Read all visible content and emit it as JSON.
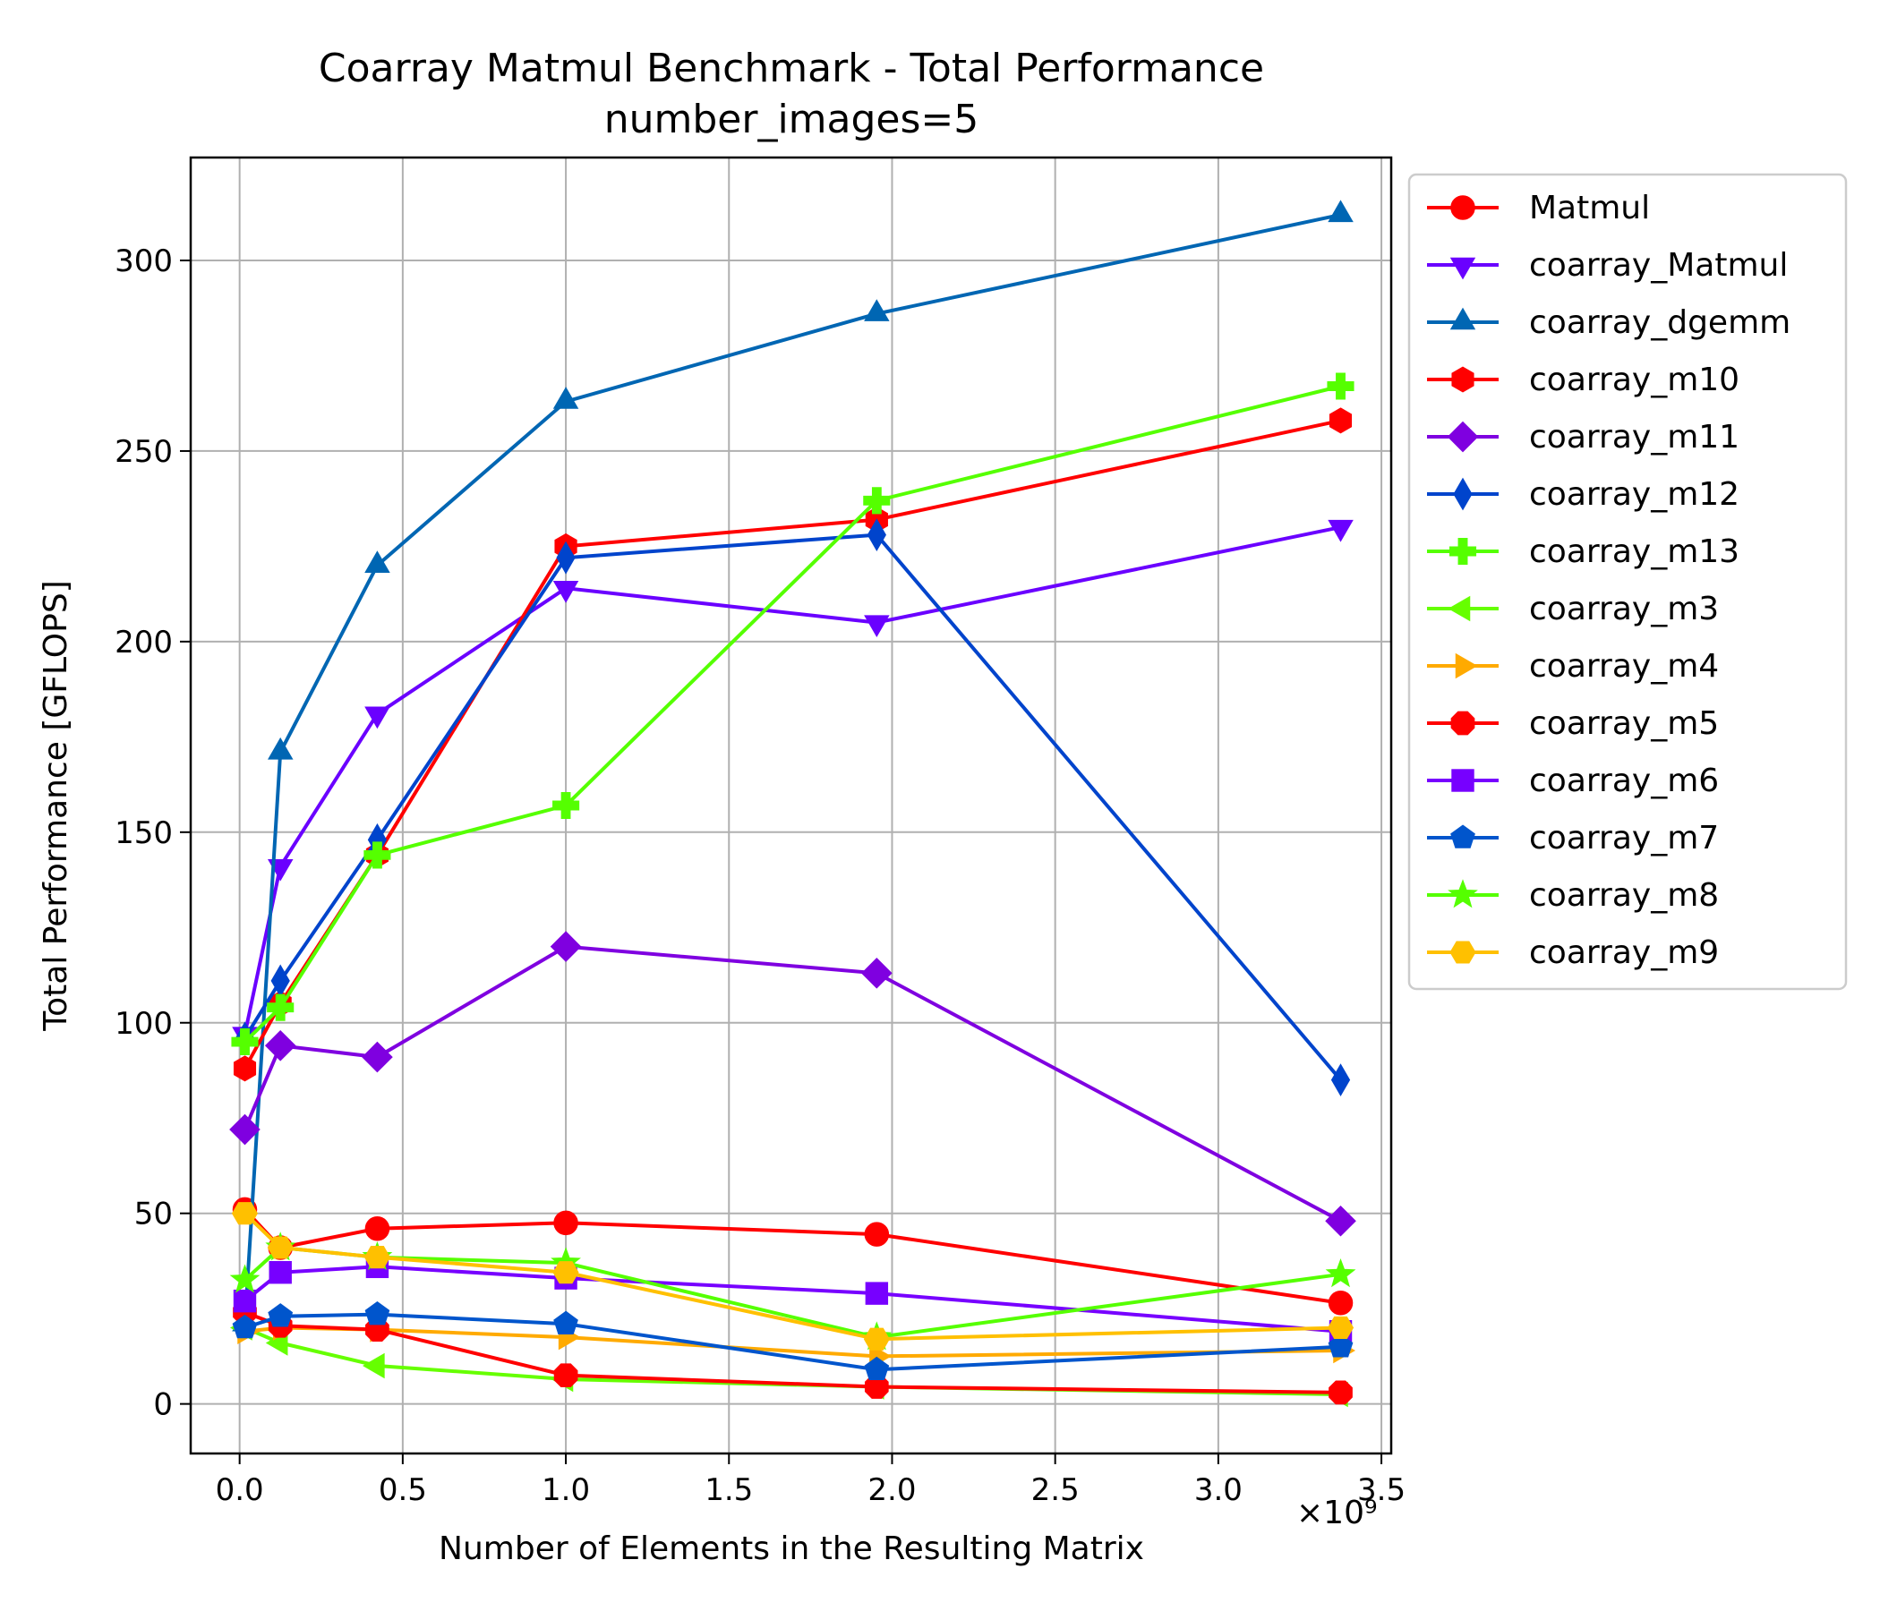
{
  "chart_data": {
    "type": "line",
    "title": "Coarray Matmul Benchmark - Total Performance",
    "subtitle": "number_images=5",
    "xlabel": "Number of Elements in the Resulting Matrix",
    "ylabel": "Total Performance [GFLOPS]",
    "x_scale_label": "×10⁹",
    "xlim": [
      -0.15,
      3.53
    ],
    "ylim": [
      -13,
      327
    ],
    "grid": true,
    "legend_position": "outside-right",
    "x_ticks": [
      {
        "value": 0.0,
        "label": "0.0"
      },
      {
        "value": 0.5,
        "label": "0.5"
      },
      {
        "value": 1.0,
        "label": "1.0"
      },
      {
        "value": 1.5,
        "label": "1.5"
      },
      {
        "value": 2.0,
        "label": "2.0"
      },
      {
        "value": 2.5,
        "label": "2.5"
      },
      {
        "value": 3.0,
        "label": "3.0"
      },
      {
        "value": 3.5,
        "label": "3.5"
      }
    ],
    "y_ticks": [
      {
        "value": 0,
        "label": "0"
      },
      {
        "value": 50,
        "label": "50"
      },
      {
        "value": 100,
        "label": "100"
      },
      {
        "value": 150,
        "label": "150"
      },
      {
        "value": 200,
        "label": "200"
      },
      {
        "value": 250,
        "label": "250"
      },
      {
        "value": 300,
        "label": "300"
      }
    ],
    "x": [
      0.016,
      0.125,
      0.422,
      1.0,
      1.953,
      3.375
    ],
    "series": [
      {
        "name": "Matmul",
        "color": "#ff0000",
        "marker": "circle",
        "values": [
          51,
          41,
          46,
          47.5,
          44.5,
          26.5
        ]
      },
      {
        "name": "coarray_Matmul",
        "color": "#6a00ff",
        "marker": "triangle-down",
        "values": [
          97,
          141,
          181,
          214,
          205,
          230
        ]
      },
      {
        "name": "coarray_dgemm",
        "color": "#0066b3",
        "marker": "triangle-up",
        "values": [
          21,
          171,
          220,
          263,
          286,
          312
        ]
      },
      {
        "name": "coarray_m10",
        "color": "#ff0000",
        "marker": "hexagon",
        "values": [
          88,
          105,
          144,
          225,
          232,
          258
        ]
      },
      {
        "name": "coarray_m11",
        "color": "#7f00e0",
        "marker": "diamond",
        "values": [
          72,
          94,
          91,
          120,
          113,
          48
        ]
      },
      {
        "name": "coarray_m12",
        "color": "#0044cc",
        "marker": "thin-diamond",
        "values": [
          96,
          111,
          148,
          222,
          228,
          85
        ]
      },
      {
        "name": "coarray_m13",
        "color": "#55ff00",
        "marker": "plus",
        "values": [
          95,
          104,
          144,
          157,
          237,
          267
        ]
      },
      {
        "name": "coarray_m3",
        "color": "#66ff00",
        "marker": "triangle-left",
        "values": [
          20,
          16,
          10,
          6.5,
          4.5,
          2.5
        ]
      },
      {
        "name": "coarray_m4",
        "color": "#ffaa00",
        "marker": "triangle-right",
        "values": [
          19,
          20,
          19.5,
          17.5,
          12.5,
          14
        ]
      },
      {
        "name": "coarray_m5",
        "color": "#ff0000",
        "marker": "octagon",
        "values": [
          24,
          20.5,
          19.5,
          7.5,
          4.5,
          3
        ]
      },
      {
        "name": "coarray_m6",
        "color": "#7700ff",
        "marker": "square",
        "values": [
          27,
          34.5,
          36,
          33,
          29,
          19
        ]
      },
      {
        "name": "coarray_m7",
        "color": "#0055cc",
        "marker": "pentagon",
        "values": [
          20,
          23,
          23.5,
          21,
          9,
          15
        ]
      },
      {
        "name": "coarray_m8",
        "color": "#55ff00",
        "marker": "star",
        "values": [
          32.5,
          41,
          38.5,
          37,
          17.5,
          34
        ]
      },
      {
        "name": "coarray_m9",
        "color": "#ffc000",
        "marker": "hexagon-flat",
        "values": [
          50,
          41,
          38.5,
          34.5,
          17,
          20
        ]
      }
    ]
  }
}
